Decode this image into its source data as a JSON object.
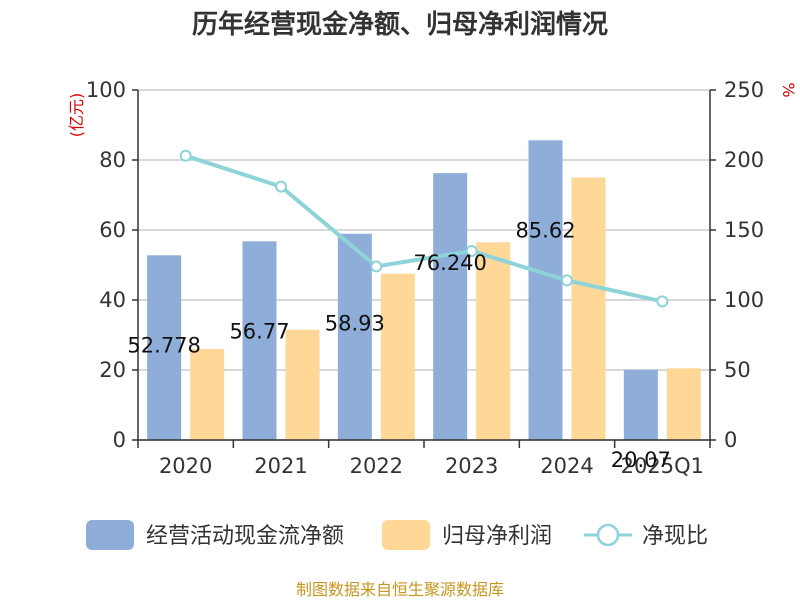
{
  "chart_data": {
    "type": "bar+line",
    "title": "历年经营现金净额、归母净利润情况",
    "categories": [
      "2020",
      "2021",
      "2022",
      "2023",
      "2024",
      "2025Q1"
    ],
    "series": [
      {
        "name": "经营活动现金流净额",
        "kind": "bar",
        "axis": "left",
        "color": "#8eaed9",
        "values": [
          52.778,
          56.77,
          58.93,
          76.24,
          85.62,
          20.07
        ],
        "labels": [
          "52.778",
          "56.77",
          "58.93",
          "76.240",
          "85.62",
          "20.07"
        ]
      },
      {
        "name": "归母净利润",
        "kind": "bar",
        "axis": "left",
        "color": "#ffd898",
        "values": [
          26,
          31.5,
          47.5,
          56.5,
          75,
          20.5
        ]
      },
      {
        "name": "净现比",
        "kind": "line",
        "axis": "right",
        "color": "#8dd3d8",
        "values": [
          203,
          181,
          124,
          135,
          114,
          99
        ]
      }
    ],
    "y_left": {
      "unit": "(亿元)",
      "ylim": [
        0,
        100
      ],
      "ticks": [
        0,
        20,
        40,
        60,
        80,
        100
      ]
    },
    "y_right": {
      "unit": "%",
      "ylim": [
        0,
        250
      ],
      "ticks": [
        0,
        50,
        100,
        150,
        200,
        250
      ]
    },
    "grid": true,
    "legend": "bottom"
  },
  "source": "制图数据来自恒生聚源数据库"
}
